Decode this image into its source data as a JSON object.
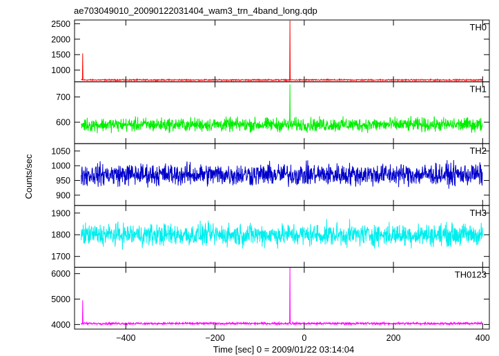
{
  "chart_data": {
    "type": "line",
    "title": "ae703049010_20090122031404_wam3_trn_4band_long.qdp",
    "xlabel": "Time [sec] 0 = 2009/01/22 03:14:04",
    "ylabel": "Counts/sec",
    "xlim": [
      -515,
      415
    ],
    "xticks": [
      -400,
      -200,
      0,
      200,
      400
    ],
    "xtick_labels": [
      "−400",
      "−200",
      "0",
      "200",
      "400"
    ],
    "x_data_range": [
      -500,
      400
    ],
    "event_time": -32,
    "grid": false,
    "legend": "none",
    "panels": [
      {
        "name": "TH0",
        "color": "#ff0000",
        "ylim": [
          620,
          2620
        ],
        "yticks": [
          1000,
          1500,
          2000,
          2500
        ],
        "ytick_labels": [
          "1000",
          "1500",
          "2000",
          "2500"
        ],
        "baseline": 680,
        "noise_amplitude": 30,
        "spikes": [
          {
            "x": -497,
            "y": 1540
          },
          {
            "x": -32,
            "y": 2600
          }
        ]
      },
      {
        "name": "TH1",
        "color": "#00ee00",
        "ylim": [
          515,
          760
        ],
        "yticks": [
          600,
          700
        ],
        "ytick_labels": [
          "600",
          "700"
        ],
        "baseline": 590,
        "noise_amplitude": 40,
        "spikes": [
          {
            "x": -32,
            "y": 750
          }
        ]
      },
      {
        "name": "TH2",
        "color": "#0000cc",
        "ylim": [
          865,
          1075
        ],
        "yticks": [
          900,
          950,
          1000,
          1050
        ],
        "ytick_labels": [
          "900",
          "950",
          "1000",
          "1050"
        ],
        "baseline": 970,
        "noise_amplitude": 55,
        "spikes": []
      },
      {
        "name": "TH3",
        "color": "#00eeee",
        "ylim": [
          1650,
          1935
        ],
        "yticks": [
          1700,
          1800,
          1900
        ],
        "ytick_labels": [
          "1700",
          "1800",
          "1900"
        ],
        "baseline": 1800,
        "noise_amplitude": 75,
        "spikes": []
      },
      {
        "name": "TH0123",
        "color": "#ff00ff",
        "ylim": [
          3820,
          6250
        ],
        "yticks": [
          4000,
          5000,
          6000
        ],
        "ytick_labels": [
          "4000",
          "5000",
          "6000"
        ],
        "baseline": 4040,
        "noise_amplitude": 70,
        "spikes": [
          {
            "x": -497,
            "y": 4950
          },
          {
            "x": -32,
            "y": 6250
          }
        ]
      }
    ]
  }
}
